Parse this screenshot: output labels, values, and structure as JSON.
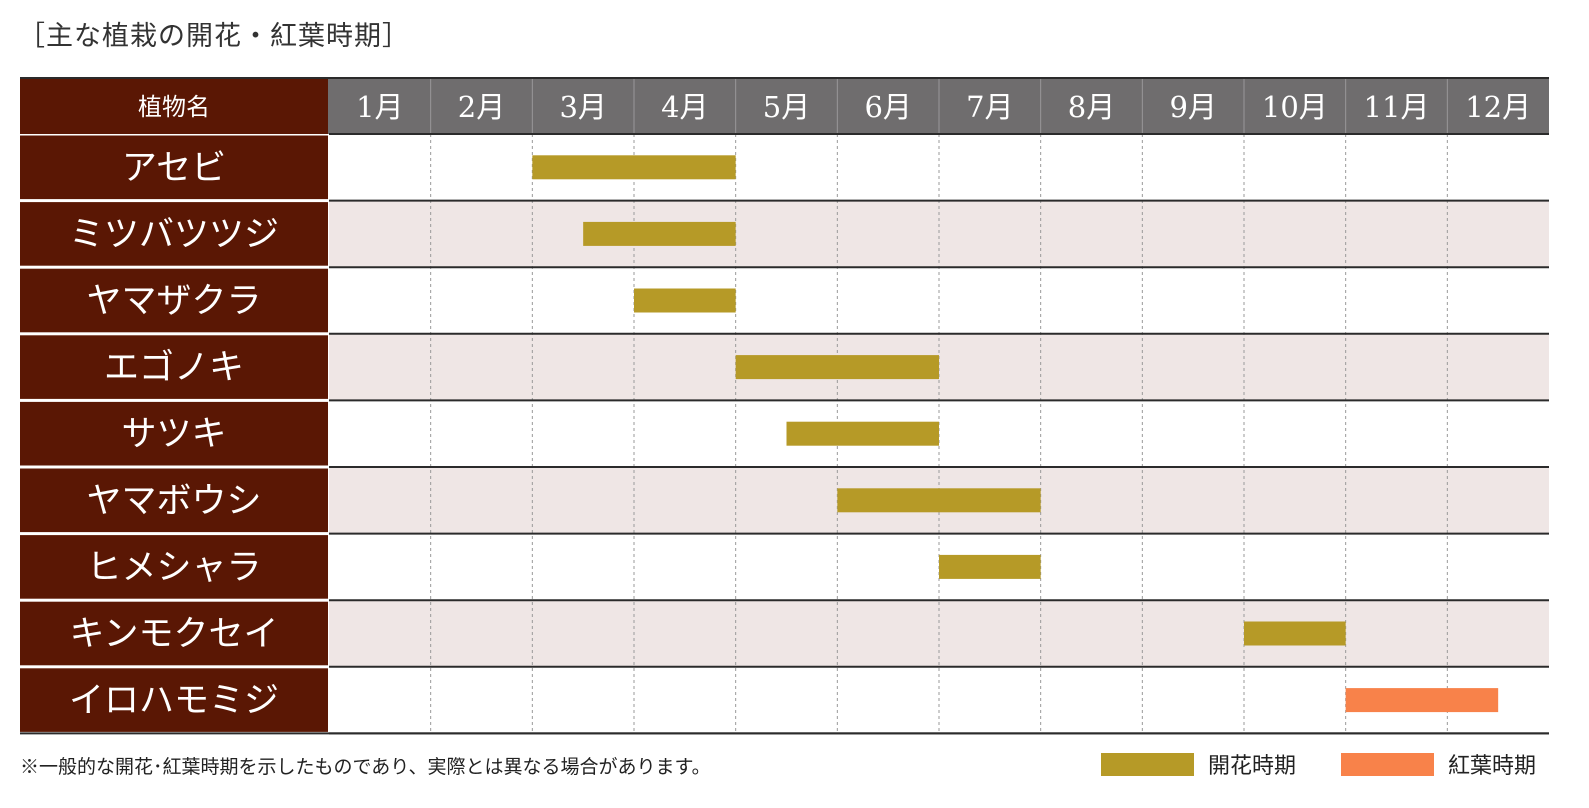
{
  "title": "［主な植栽の開花・紅葉時期］",
  "footnote": "※一般的な開花･紅葉時期を示したものであり、実際とは異なる場合があります。",
  "colors": {
    "header_bg": "#6f6d6e",
    "name_col_bg": "#5a1704",
    "bloom": "#b69a27",
    "foliage": "#f8824a",
    "row_alt": "#efe6e5",
    "row_base": "#ffffff"
  },
  "legend": [
    {
      "label": "開花時期",
      "color": "#b69a27"
    },
    {
      "label": "紅葉時期",
      "color": "#f8824a"
    }
  ],
  "chart_data": {
    "type": "gantt",
    "header_label": "植物名",
    "months": [
      "1月",
      "2月",
      "3月",
      "4月",
      "5月",
      "6月",
      "7月",
      "8月",
      "9月",
      "10月",
      "11月",
      "12月"
    ],
    "plants": [
      {
        "name": "アセビ",
        "periods": [
          {
            "kind": "bloom",
            "start": 3.0,
            "end": 5.0
          }
        ]
      },
      {
        "name": "ミツバツツジ",
        "periods": [
          {
            "kind": "bloom",
            "start": 3.5,
            "end": 5.0
          }
        ]
      },
      {
        "name": "ヤマザクラ",
        "periods": [
          {
            "kind": "bloom",
            "start": 4.0,
            "end": 5.0
          }
        ]
      },
      {
        "name": "エゴノキ",
        "periods": [
          {
            "kind": "bloom",
            "start": 5.0,
            "end": 7.0
          }
        ]
      },
      {
        "name": "サツキ",
        "periods": [
          {
            "kind": "bloom",
            "start": 5.5,
            "end": 7.0
          }
        ]
      },
      {
        "name": "ヤマボウシ",
        "periods": [
          {
            "kind": "bloom",
            "start": 6.0,
            "end": 8.0
          }
        ]
      },
      {
        "name": "ヒメシャラ",
        "periods": [
          {
            "kind": "bloom",
            "start": 7.0,
            "end": 8.0
          }
        ]
      },
      {
        "name": "キンモクセイ",
        "periods": [
          {
            "kind": "bloom",
            "start": 10.0,
            "end": 11.0
          }
        ]
      },
      {
        "name": "イロハモミジ",
        "periods": [
          {
            "kind": "foliage",
            "start": 11.0,
            "end": 12.5
          }
        ]
      }
    ]
  }
}
